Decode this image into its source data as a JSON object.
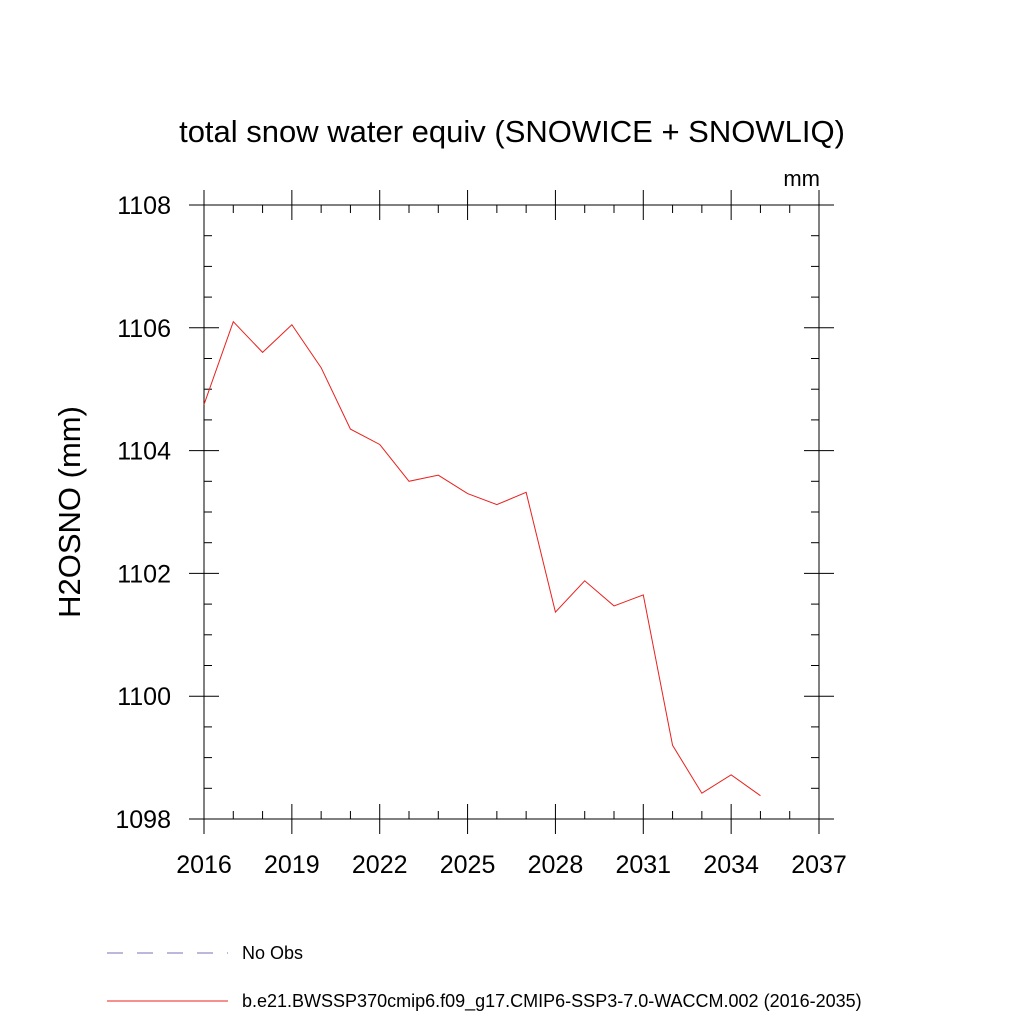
{
  "chart_data": {
    "type": "line",
    "title": "total snow water equiv (SNOWICE + SNOWLIQ)",
    "units": "mm",
    "ylabel": "H2OSNO  (mm)",
    "xlabel": "",
    "xlim": [
      2016,
      2037
    ],
    "ylim": [
      1098,
      1108
    ],
    "xticks": [
      2016,
      2019,
      2022,
      2025,
      2028,
      2031,
      2034,
      2037
    ],
    "xtick_labels": [
      "2016",
      "2019",
      "2022",
      "2025",
      "2028",
      "2031",
      "2034",
      "2037"
    ],
    "yticks": [
      1098,
      1100,
      1102,
      1104,
      1106,
      1108
    ],
    "ytick_labels": [
      "1098",
      "1100",
      "1102",
      "1104",
      "1106",
      "1108"
    ],
    "x_minor_step": 1,
    "y_minor_step": 0.5,
    "grid": false,
    "legend_position": "bottom",
    "series": [
      {
        "name": "b.e21.BWSSP370cmip6.f09_g17.CMIP6-SSP3-7.0-WACCM.002 (2016-2035)",
        "color": "#e8211d",
        "style": "solid",
        "x": [
          2016,
          2017,
          2018,
          2019,
          2020,
          2021,
          2022,
          2023,
          2024,
          2025,
          2026,
          2027,
          2028,
          2029,
          2030,
          2031,
          2032,
          2033,
          2034,
          2035
        ],
        "values": [
          1104.75,
          1106.1,
          1105.6,
          1106.05,
          1105.35,
          1104.35,
          1104.1,
          1103.5,
          1103.6,
          1103.3,
          1103.12,
          1103.32,
          1101.37,
          1101.88,
          1101.47,
          1101.65,
          1099.2,
          1098.42,
          1098.72,
          1098.38
        ]
      }
    ],
    "legend": [
      {
        "label": "No Obs",
        "color": "#7b6fb5",
        "style": "dashed"
      },
      {
        "label": "b.e21.BWSSP370cmip6.f09_g17.CMIP6-SSP3-7.0-WACCM.002 (2016-2035)",
        "color": "#e8211d",
        "style": "solid"
      }
    ]
  }
}
